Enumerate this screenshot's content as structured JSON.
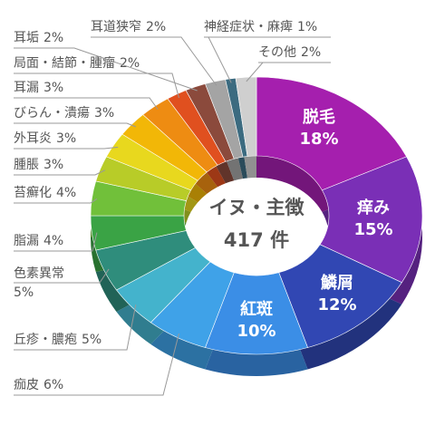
{
  "chart_data": {
    "type": "pie",
    "center_text": "イヌ・主徴",
    "total_label": "417 件",
    "categories": [
      "脱毛",
      "痒み",
      "鱗屑",
      "紅斑",
      "痂皮",
      "丘疹・膿疱",
      "色素異常",
      "脂漏",
      "苔癬化",
      "腫脹",
      "外耳炎",
      "びらん・潰瘍",
      "耳漏",
      "局面・結節・腫瘤",
      "耳垢",
      "耳道狭窄",
      "神経症状・麻痺",
      "その他"
    ],
    "values": [
      18,
      15,
      12,
      10,
      6,
      5,
      5,
      4,
      4,
      3,
      3,
      3,
      3,
      2,
      2,
      2,
      1,
      2
    ],
    "value_labels": [
      "18%",
      "15%",
      "12%",
      "10%",
      "6%",
      "5%",
      "5%",
      "4%",
      "4%",
      "3%",
      "3%",
      "3%",
      "3%",
      "2%",
      "2%",
      "2%",
      "1%",
      "2%"
    ],
    "colors": [
      "#a51fae",
      "#7a2fb6",
      "#3147b3",
      "#3b8ee6",
      "#3fa2e8",
      "#44b3cc",
      "#2f8d7c",
      "#3aa345",
      "#71c03a",
      "#b8cc28",
      "#e8d81e",
      "#f2b707",
      "#ee8c12",
      "#e0501f",
      "#8b4a3c",
      "#a4a4a4",
      "#3c6b80",
      "#cfcfcf"
    ]
  }
}
